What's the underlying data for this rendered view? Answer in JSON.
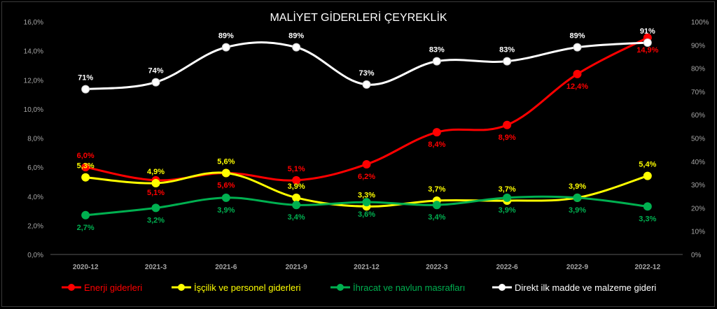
{
  "chart_data": {
    "type": "line",
    "title": "MALİYET GİDERLERİ ÇEYREKLİK",
    "categories": [
      "2020-12",
      "2021-3",
      "2021-6",
      "2021-9",
      "2021-12",
      "2022-3",
      "2022-6",
      "2022-9",
      "2022-12"
    ],
    "y_left": {
      "min": 0,
      "max": 16,
      "step": 2,
      "ticks": [
        "0,0%",
        "2,0%",
        "4,0%",
        "6,0%",
        "8,0%",
        "10,0%",
        "12,0%",
        "14,0%",
        "16,0%"
      ]
    },
    "y_right": {
      "min": 0,
      "max": 100,
      "step": 10,
      "ticks": [
        "0%",
        "10%",
        "20%",
        "30%",
        "40%",
        "50%",
        "60%",
        "70%",
        "80%",
        "90%",
        "100%"
      ]
    },
    "legend_position": "bottom",
    "grid": false,
    "series": [
      {
        "name": "Enerji giderleri",
        "axis": "left",
        "color": "#ff0000",
        "values": [
          6.0,
          5.1,
          5.6,
          5.1,
          6.2,
          8.4,
          8.9,
          12.4,
          14.9
        ],
        "labels": [
          "6,0%",
          "5,1%",
          "5,6%",
          "5,1%",
          "6,2%",
          "8,4%",
          "8,9%",
          "12,4%",
          "14,9%"
        ]
      },
      {
        "name": "İşçilik ve personel giderleri",
        "axis": "left",
        "color": "#ffff00",
        "values": [
          5.3,
          4.9,
          5.6,
          3.9,
          3.3,
          3.7,
          3.7,
          3.9,
          5.4
        ],
        "labels": [
          "5,3%",
          "4,9%",
          "5,6%",
          "3,9%",
          "3,3%",
          "3,7%",
          "3,7%",
          "3,9%",
          "5,4%"
        ]
      },
      {
        "name": "İhracat ve navlun masrafları",
        "axis": "left",
        "color": "#00b050",
        "values": [
          2.7,
          3.2,
          3.9,
          3.4,
          3.6,
          3.4,
          3.9,
          3.9,
          3.3
        ],
        "labels": [
          "2,7%",
          "3,2%",
          "3,9%",
          "3,4%",
          "3,6%",
          "3,4%",
          "3,9%",
          "3,9%",
          "3,3%"
        ]
      },
      {
        "name": "Direkt ilk madde ve malzeme gideri",
        "axis": "right",
        "color": "#ffffff",
        "values": [
          71,
          74,
          89,
          89,
          73,
          83,
          83,
          89,
          91
        ],
        "labels": [
          "71%",
          "74%",
          "89%",
          "89%",
          "73%",
          "83%",
          "83%",
          "89%",
          "91%"
        ]
      }
    ]
  }
}
